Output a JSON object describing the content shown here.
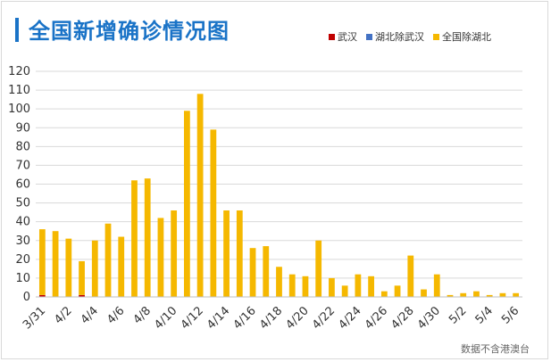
{
  "title": "全国新增确诊情况图",
  "source": "数据不含港澳台",
  "colors": {
    "wuhan": "#c00000",
    "hubei_ex_wuhan": "#4472c4",
    "national_ex_hubei": "#f5b800",
    "title": "#1a73c7"
  },
  "chart_data": {
    "type": "bar",
    "stacked": true,
    "title": "全国新增确诊情况图",
    "xlabel": "",
    "ylabel": "",
    "ylim": [
      0,
      120
    ],
    "yticks": [
      0,
      10,
      20,
      30,
      40,
      50,
      60,
      70,
      80,
      90,
      100,
      110,
      120
    ],
    "grid": true,
    "legend_position": "top-right",
    "categories": [
      "3/31",
      "4/1",
      "4/2",
      "4/3",
      "4/4",
      "4/5",
      "4/6",
      "4/7",
      "4/8",
      "4/9",
      "4/10",
      "4/11",
      "4/12",
      "4/13",
      "4/14",
      "4/15",
      "4/16",
      "4/17",
      "4/18",
      "4/19",
      "4/20",
      "4/21",
      "4/22",
      "4/23",
      "4/24",
      "4/25",
      "4/26",
      "4/27",
      "4/28",
      "4/29",
      "4/30",
      "5/1",
      "5/2",
      "5/3",
      "5/4",
      "5/5",
      "5/6"
    ],
    "tick_labels": [
      "3/31",
      "4/2",
      "4/4",
      "4/6",
      "4/8",
      "4/10",
      "4/12",
      "4/14",
      "4/16",
      "4/18",
      "4/20",
      "4/22",
      "4/24",
      "4/26",
      "4/28",
      "4/30",
      "5/2",
      "5/4",
      "5/6"
    ],
    "series": [
      {
        "name": "武汉",
        "values": [
          1,
          0,
          0,
          1,
          0,
          0,
          0,
          0,
          0,
          0,
          0,
          0,
          0,
          0,
          0,
          0,
          0,
          0,
          0,
          0,
          0,
          0,
          0,
          0,
          0,
          0,
          0,
          0,
          0,
          0,
          0,
          0,
          0,
          0,
          0,
          0,
          0
        ]
      },
      {
        "name": "湖北除武汉",
        "values": [
          0,
          0,
          0,
          0,
          0,
          0,
          0,
          0,
          0,
          0,
          0,
          0,
          0,
          0,
          0,
          0,
          0,
          0,
          0,
          0,
          0,
          0,
          0,
          0,
          0,
          0,
          0,
          0,
          0,
          0,
          0,
          0,
          0,
          0,
          0,
          0,
          0
        ]
      },
      {
        "name": "全国除湖北",
        "values": [
          35,
          35,
          31,
          18,
          30,
          39,
          32,
          62,
          63,
          42,
          46,
          99,
          108,
          89,
          46,
          46,
          26,
          27,
          16,
          12,
          11,
          30,
          10,
          6,
          12,
          11,
          3,
          6,
          22,
          4,
          12,
          1,
          2,
          3,
          1,
          2,
          2
        ]
      }
    ]
  }
}
